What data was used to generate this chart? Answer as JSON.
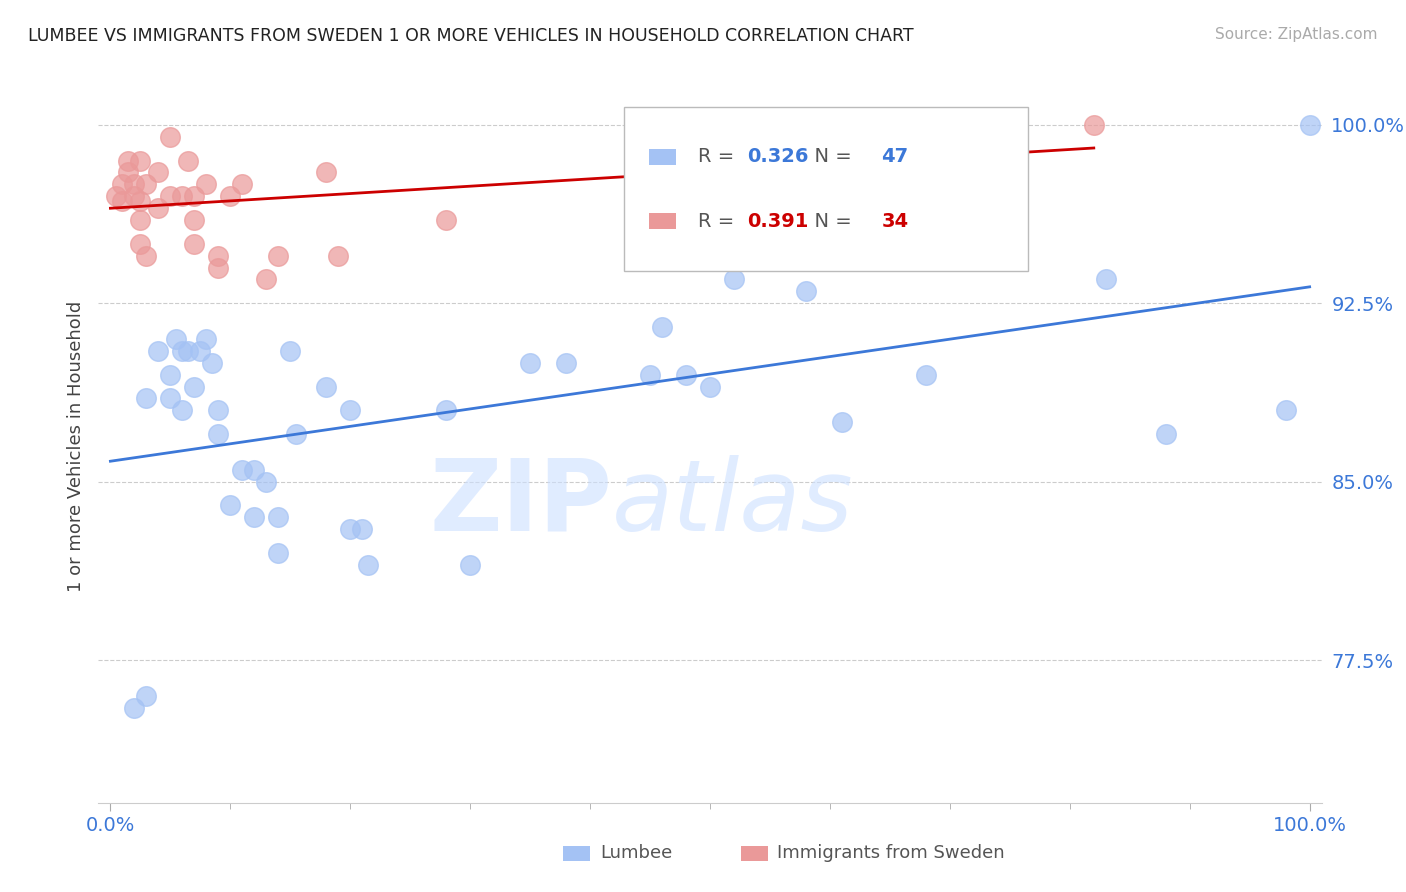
{
  "title": "LUMBEE VS IMMIGRANTS FROM SWEDEN 1 OR MORE VEHICLES IN HOUSEHOLD CORRELATION CHART",
  "source": "Source: ZipAtlas.com",
  "ylabel": "1 or more Vehicles in Household",
  "ylim": [
    0.715,
    1.015
  ],
  "xlim": [
    -0.01,
    1.01
  ],
  "yticks": [
    0.775,
    0.85,
    0.925,
    1.0
  ],
  "ytick_labels": [
    "77.5%",
    "85.0%",
    "92.5%",
    "100.0%"
  ],
  "R_lumbee": "0.326",
  "N_lumbee": "47",
  "R_sweden": "0.391",
  "N_sweden": "34",
  "blue_color": "#a4c2f4",
  "pink_color": "#ea9999",
  "blue_line_color": "#3c78d8",
  "pink_line_color": "#cc0000",
  "legend_lumbee": "Lumbee",
  "legend_sweden": "Immigrants from Sweden",
  "lumbee_x": [
    0.02,
    0.03,
    0.04,
    0.05,
    0.05,
    0.055,
    0.06,
    0.06,
    0.065,
    0.07,
    0.075,
    0.08,
    0.085,
    0.09,
    0.09,
    0.1,
    0.11,
    0.12,
    0.12,
    0.13,
    0.14,
    0.14,
    0.15,
    0.155,
    0.18,
    0.2,
    0.2,
    0.21,
    0.215,
    0.28,
    0.3,
    0.35,
    0.38,
    0.45,
    0.46,
    0.48,
    0.5,
    0.52,
    0.57,
    0.58,
    0.61,
    0.68,
    0.83,
    0.88,
    0.98,
    1.0,
    0.03
  ],
  "lumbee_y": [
    0.755,
    0.885,
    0.905,
    0.885,
    0.895,
    0.91,
    0.905,
    0.88,
    0.905,
    0.89,
    0.905,
    0.91,
    0.9,
    0.88,
    0.87,
    0.84,
    0.855,
    0.835,
    0.855,
    0.85,
    0.82,
    0.835,
    0.905,
    0.87,
    0.89,
    0.88,
    0.83,
    0.83,
    0.815,
    0.88,
    0.815,
    0.9,
    0.9,
    0.895,
    0.915,
    0.895,
    0.89,
    0.935,
    0.945,
    0.93,
    0.875,
    0.895,
    0.935,
    0.87,
    0.88,
    1.0,
    0.76
  ],
  "sweden_x": [
    0.005,
    0.01,
    0.01,
    0.015,
    0.015,
    0.02,
    0.02,
    0.025,
    0.025,
    0.025,
    0.025,
    0.03,
    0.03,
    0.04,
    0.04,
    0.05,
    0.05,
    0.06,
    0.065,
    0.07,
    0.07,
    0.07,
    0.08,
    0.09,
    0.09,
    0.1,
    0.11,
    0.13,
    0.14,
    0.18,
    0.19,
    0.28,
    0.5,
    0.82
  ],
  "sweden_y": [
    0.97,
    0.975,
    0.968,
    0.985,
    0.98,
    0.975,
    0.97,
    0.985,
    0.968,
    0.96,
    0.95,
    0.975,
    0.945,
    0.98,
    0.965,
    0.995,
    0.97,
    0.97,
    0.985,
    0.96,
    0.95,
    0.97,
    0.975,
    0.945,
    0.94,
    0.97,
    0.975,
    0.935,
    0.945,
    0.98,
    0.945,
    0.96,
    0.995,
    1.0
  ]
}
